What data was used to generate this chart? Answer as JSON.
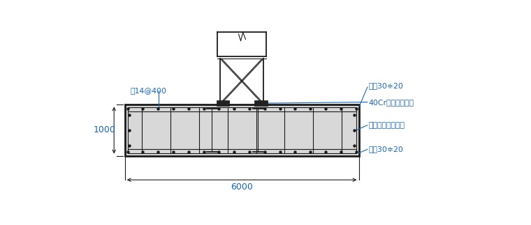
{
  "bg_color": "#ffffff",
  "line_color": "#1a1a1a",
  "blue_color": "#1565C0",
  "annotations": {
    "rebar_top": "圔14@400",
    "bolt_label": "40Cr塔吊专用螺栓",
    "steel_plate": "塔吊专用定位钉板",
    "rebar_top_right": "双咇30≑20",
    "rebar_bot_right": "双咇30≑20",
    "height_label": "1000",
    "width_label": "6000"
  }
}
